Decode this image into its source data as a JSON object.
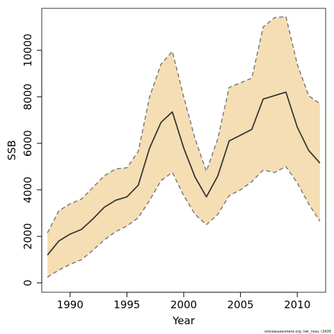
{
  "chart_data": {
    "type": "line",
    "xlabel": "Year",
    "ylabel": "SSB",
    "xlim": [
      1987.5,
      2012.5
    ],
    "ylim": [
      -400,
      11800
    ],
    "x_ticks": [
      1990,
      1995,
      2000,
      2005,
      2010
    ],
    "y_ticks": [
      0,
      2000,
      4000,
      6000,
      8000,
      10000
    ],
    "x_tick_labels": [
      "1990",
      "1995",
      "2000",
      "2005",
      "2010"
    ],
    "y_tick_labels": [
      "0",
      "2000",
      "4000",
      "6000",
      "8000",
      "10000"
    ],
    "grid": false,
    "x": [
      1988,
      1989,
      1990,
      1991,
      1992,
      1993,
      1994,
      1995,
      1996,
      1997,
      1998,
      1999,
      2000,
      2001,
      2002,
      2003,
      2004,
      2005,
      2006,
      2007,
      2008,
      2009,
      2010,
      2011,
      2012
    ],
    "series": [
      {
        "role": "estimate",
        "values": [
          1200,
          1800,
          2100,
          2300,
          2750,
          3250,
          3550,
          3700,
          4200,
          5800,
          6900,
          7350,
          5800,
          4550,
          3700,
          4600,
          6100,
          6350,
          6600,
          7900,
          8050,
          8200,
          6700,
          5700,
          5150
        ]
      },
      {
        "role": "upper",
        "values": [
          2150,
          3100,
          3400,
          3600,
          4100,
          4600,
          4900,
          4950,
          5650,
          8000,
          9400,
          9950,
          8000,
          6200,
          4800,
          6200,
          8400,
          8600,
          8800,
          11000,
          11400,
          11450,
          9400,
          8050,
          7700
        ]
      },
      {
        "role": "lower",
        "values": [
          250,
          550,
          800,
          1000,
          1400,
          1850,
          2200,
          2450,
          2800,
          3550,
          4400,
          4750,
          3750,
          2950,
          2500,
          2950,
          3750,
          4000,
          4350,
          4850,
          4750,
          5000,
          4300,
          3400,
          2650
        ]
      }
    ],
    "colors": {
      "band": "#f5deb3",
      "estimate": "#333333",
      "bounds": "#777777"
    }
  },
  "credit_text": "stockassessment.org, her_noss, r2635"
}
